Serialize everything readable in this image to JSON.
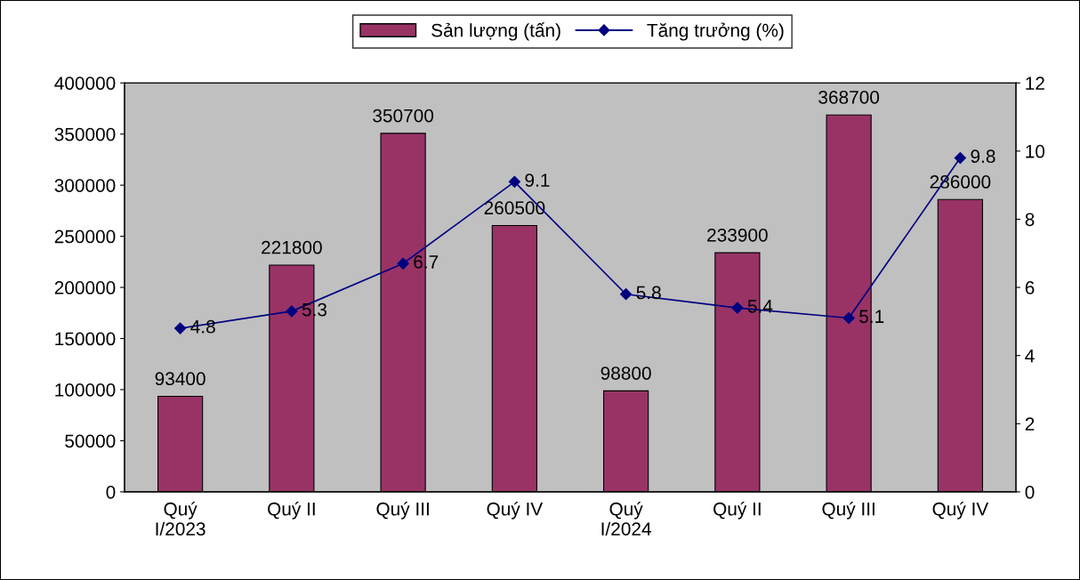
{
  "chart_data": {
    "type": "bar",
    "categories": [
      "Quý\nI/2023",
      "Quý II",
      "Quý III",
      "Quý IV",
      "Quý\nI/2024",
      "Quý II",
      "Quý III",
      "Quý IV"
    ],
    "series": [
      {
        "name": "Sản lượng (tấn)",
        "color": "#993366",
        "values": [
          93400,
          221800,
          350700,
          260500,
          98800,
          233900,
          368700,
          286000
        ]
      },
      {
        "name": "Tăng trưởng (%)",
        "type": "line",
        "axis": "y2",
        "color": "#000080",
        "marker": "diamond",
        "values": [
          4.8,
          5.3,
          6.7,
          9.1,
          5.8,
          5.4,
          5.1,
          9.8
        ]
      }
    ],
    "ylim": [
      0,
      400000
    ],
    "yticks": [
      0,
      50000,
      100000,
      150000,
      200000,
      250000,
      300000,
      350000,
      400000
    ],
    "y2lim": [
      0,
      12
    ],
    "y2ticks": [
      0,
      2,
      4,
      6,
      8,
      10,
      12
    ],
    "data_labels": true,
    "legend": "top",
    "grid": false
  }
}
